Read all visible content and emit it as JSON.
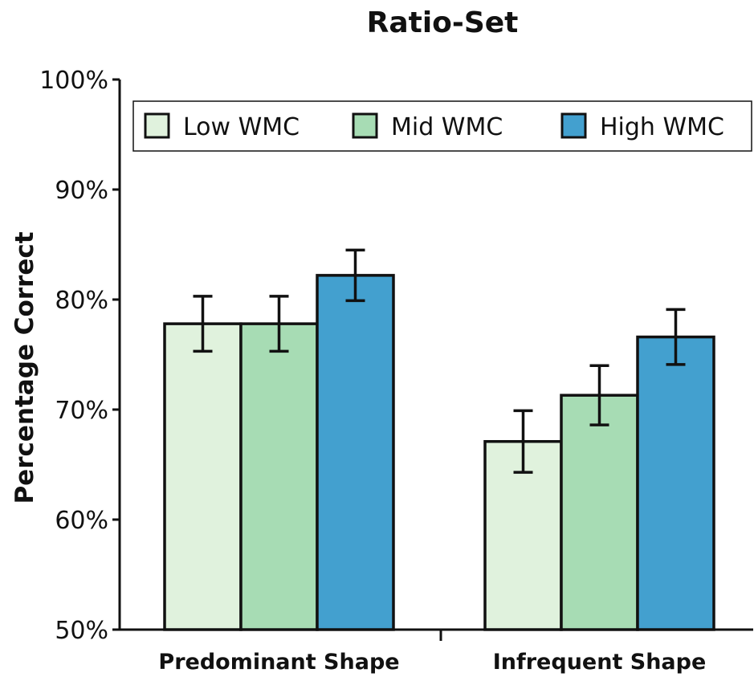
{
  "chart_data": {
    "type": "bar",
    "title": "Ratio-Set",
    "ylabel": "Percentage Correct",
    "xlabel": "",
    "categories": [
      "Predominant Shape",
      "Infrequent Shape"
    ],
    "ylim": [
      50,
      100
    ],
    "yticks": [
      50,
      60,
      70,
      80,
      90,
      100
    ],
    "ytick_labels": [
      "50%",
      "60%",
      "70%",
      "80%",
      "90%",
      "100%"
    ],
    "legend_position": "top",
    "series": [
      {
        "name": "Low WMC",
        "color": "#e0f2dd",
        "values": [
          77.8,
          67.1
        ],
        "error": [
          2.5,
          2.8
        ]
      },
      {
        "name": "Mid WMC",
        "color": "#a7dcb4",
        "values": [
          77.8,
          71.3
        ],
        "error": [
          2.5,
          2.7
        ]
      },
      {
        "name": "High WMC",
        "color": "#43a0cf",
        "values": [
          82.2,
          76.6
        ],
        "error": [
          2.3,
          2.5
        ]
      }
    ]
  }
}
